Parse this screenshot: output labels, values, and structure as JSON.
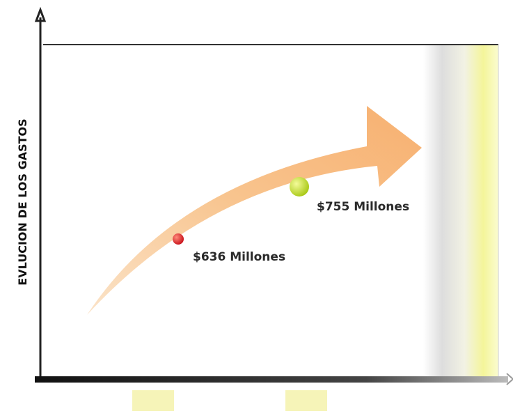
{
  "axis_label": "EVLUCION DE LOS GASTOS",
  "points": [
    {
      "label": "$636 Millones"
    },
    {
      "label": "$755 Millones"
    }
  ]
}
